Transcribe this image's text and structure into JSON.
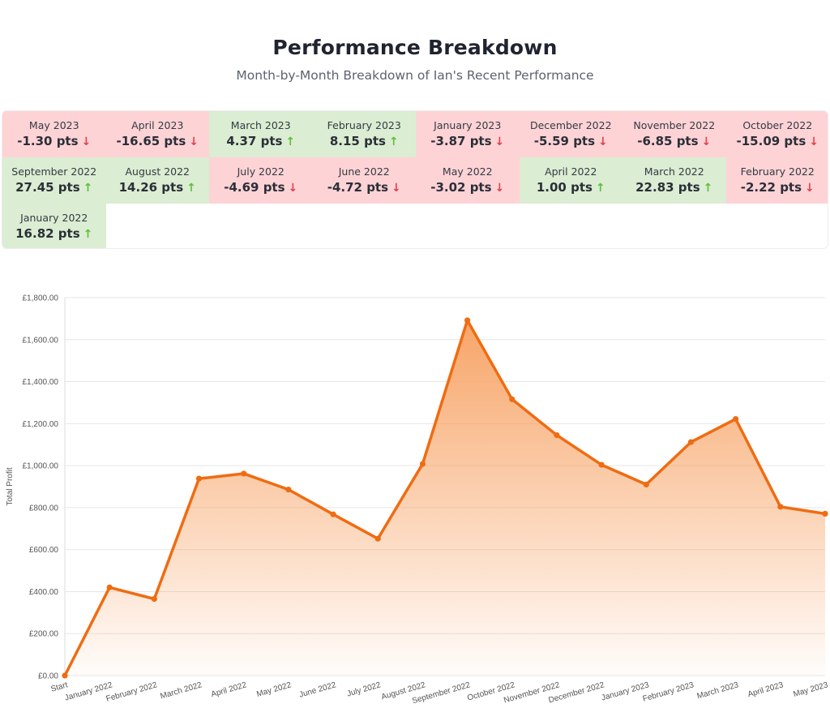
{
  "header": {
    "title": "Performance Breakdown",
    "subtitle": "Month-by-Month Breakdown of Ian's Recent Performance"
  },
  "breakdown": [
    {
      "month": "May 2023",
      "value": "-1.30 pts",
      "trend": "down"
    },
    {
      "month": "April 2023",
      "value": "-16.65 pts",
      "trend": "down"
    },
    {
      "month": "March 2023",
      "value": "4.37 pts",
      "trend": "up"
    },
    {
      "month": "February 2023",
      "value": "8.15 pts",
      "trend": "up"
    },
    {
      "month": "January 2023",
      "value": "-3.87 pts",
      "trend": "down"
    },
    {
      "month": "December 2022",
      "value": "-5.59 pts",
      "trend": "down"
    },
    {
      "month": "November 2022",
      "value": "-6.85 pts",
      "trend": "down"
    },
    {
      "month": "October 2022",
      "value": "-15.09 pts",
      "trend": "down"
    },
    {
      "month": "September 2022",
      "value": "27.45 pts",
      "trend": "up"
    },
    {
      "month": "August 2022",
      "value": "14.26 pts",
      "trend": "up"
    },
    {
      "month": "July 2022",
      "value": "-4.69 pts",
      "trend": "down"
    },
    {
      "month": "June 2022",
      "value": "-4.72 pts",
      "trend": "down"
    },
    {
      "month": "May 2022",
      "value": "-3.02 pts",
      "trend": "down"
    },
    {
      "month": "April 2022",
      "value": "1.00 pts",
      "trend": "up"
    },
    {
      "month": "March 2022",
      "value": "22.83 pts",
      "trend": "up"
    },
    {
      "month": "February 2022",
      "value": "-2.22 pts",
      "trend": "down"
    },
    {
      "month": "January 2022",
      "value": "16.82 pts",
      "trend": "up"
    }
  ],
  "icons": {
    "up": "arrow-up-icon",
    "down": "arrow-down-icon"
  },
  "colors": {
    "down_bg": "#fdd3d6",
    "up_bg": "#dbedd2",
    "down_arrow": "#e2424d",
    "up_arrow": "#5fbf3a",
    "line": "#ef6c12",
    "area_top": "#f7a060"
  },
  "chart_data": {
    "type": "area",
    "ylabel": "Total Profit",
    "xlabel": "",
    "ylim": [
      0,
      1800
    ],
    "y_ticks": [
      "£0.00",
      "£200.00",
      "£400.00",
      "£600.00",
      "£800.00",
      "£1,000.00",
      "£1,200.00",
      "£1,400.00",
      "£1,600.00",
      "£1,800.00"
    ],
    "categories": [
      "Start",
      "January 2022",
      "February 2022",
      "March 2022",
      "April 2022",
      "May 2022",
      "June 2022",
      "July 2022",
      "August 2022",
      "September 2022",
      "October 2022",
      "November 2022",
      "December 2022",
      "January 2023",
      "February 2023",
      "March 2023",
      "April 2023",
      "May 2023"
    ],
    "values": [
      0,
      420,
      365,
      938,
      962,
      886,
      768,
      652,
      1008,
      1692,
      1316,
      1145,
      1004,
      910,
      1112,
      1222,
      804,
      771
    ],
    "grid": true,
    "legend": "none"
  }
}
